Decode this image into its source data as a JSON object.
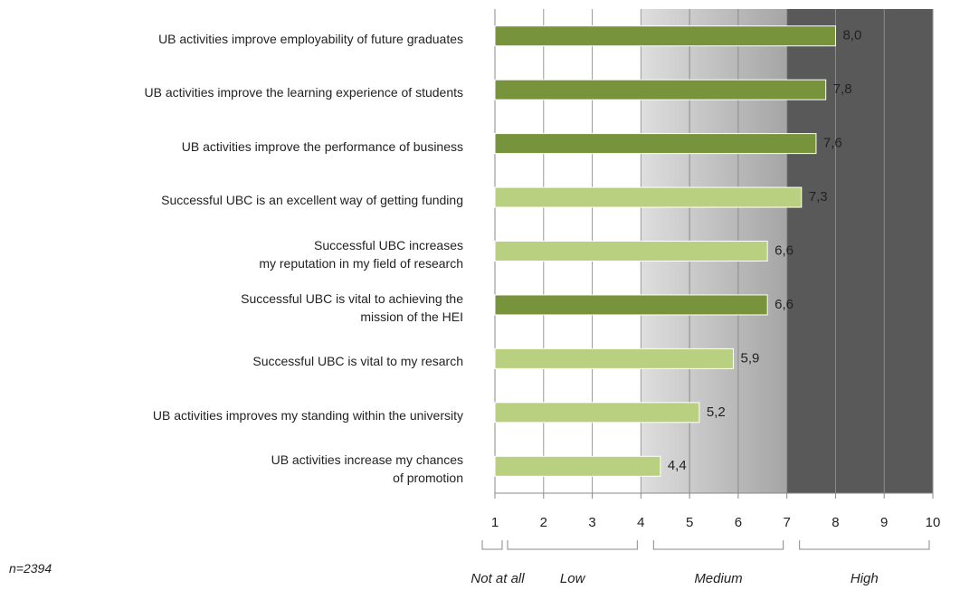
{
  "chart_data": {
    "type": "bar",
    "orientation": "horizontal",
    "categories": [
      "UB activities improve employability of future graduates",
      "UB activities improve the learning experience of students",
      "UB activities improve the performance of business",
      "Successful UBC is an excellent way of getting funding",
      "Successful UBC increases\nmy reputation in my field of research",
      "Successful UBC is vital to achieving the\nmission of the HEI",
      "Successful UBC is vital to my resarch",
      "UB activities improves my standing within the university",
      "UB activities increase my chances\nof promotion"
    ],
    "values": [
      8.0,
      7.8,
      7.6,
      7.3,
      6.6,
      6.6,
      5.9,
      5.2,
      4.4
    ],
    "value_labels": [
      "8,0",
      "7,8",
      "7,6",
      "7,3",
      "6,6",
      "6,6",
      "5,9",
      "5,2",
      "4,4"
    ],
    "colors": [
      "#77933c",
      "#77933c",
      "#77933c",
      "#b9d080",
      "#b9d080",
      "#77933c",
      "#b9d080",
      "#b9d080",
      "#b9d080"
    ],
    "xlim": [
      1,
      10
    ],
    "xticks": [
      1,
      2,
      3,
      4,
      5,
      6,
      7,
      8,
      9,
      10
    ],
    "grid": true,
    "zones": [
      {
        "label": "Not at all",
        "range": [
          1,
          1
        ]
      },
      {
        "label": "Low",
        "range": [
          1,
          4
        ]
      },
      {
        "label": "Medium",
        "range": [
          4,
          7
        ],
        "color": "#bfbfbf"
      },
      {
        "label": "High",
        "range": [
          7,
          10
        ],
        "color": "#595959"
      }
    ],
    "annotation": "n=2394"
  }
}
